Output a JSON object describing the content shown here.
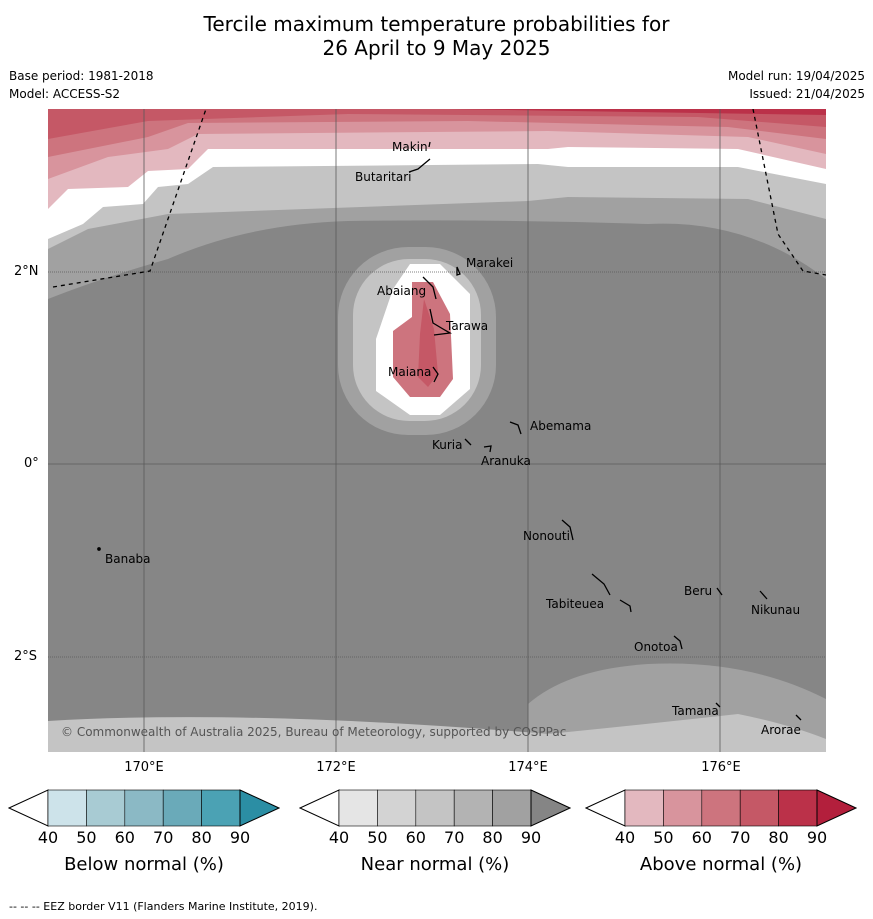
{
  "title": {
    "line1": "Tercile maximum temperature probabilities for",
    "line2": "26 April to 9 May 2025"
  },
  "meta": {
    "base_period": "Base period: 1981-2018",
    "model": "Model: ACCESS-S2",
    "model_run": "Model run: 19/04/2025",
    "issued": "Issued: 21/04/2025"
  },
  "map": {
    "lat_labels": [
      "2°N",
      "0°",
      "2°S"
    ],
    "lon_labels": [
      "170°E",
      "172°E",
      "174°E",
      "176°E"
    ],
    "places": {
      "makin": "Makin",
      "butaritari": "Butaritari",
      "marakei": "Marakei",
      "abaiang": "Abaiang",
      "tarawa": "Tarawa",
      "maiana": "Maiana",
      "abemama": "Abemama",
      "kuria": "Kuria",
      "aranuka": "Aranuka",
      "nonouti": "Nonouti",
      "banaba": "Banaba",
      "tabiteuea": "Tabiteuea",
      "beru": "Beru",
      "nikunau": "Nikunau",
      "onotoa": "Onotoa",
      "tamana": "Tamana",
      "arorae": "Arorae"
    },
    "copyright": "© Commonwealth of Australia 2025, Bureau of Meteorology, supported by COSPPac"
  },
  "colorbars": [
    {
      "label": "Below normal (%)",
      "ticks": [
        "40",
        "50",
        "60",
        "70",
        "80",
        "90"
      ],
      "colors": [
        "#ffffff",
        "#cde3ea",
        "#a8cbd3",
        "#8bb9c5",
        "#6aaab9",
        "#4ba2b4",
        "#2b8ea4"
      ]
    },
    {
      "label": "Near normal (%)",
      "ticks": [
        "40",
        "50",
        "60",
        "70",
        "80",
        "90"
      ],
      "colors": [
        "#ffffff",
        "#e5e5e5",
        "#d3d3d3",
        "#c4c4c4",
        "#b3b3b3",
        "#a1a1a1",
        "#858585"
      ]
    },
    {
      "label": "Above normal (%)",
      "ticks": [
        "40",
        "50",
        "60",
        "70",
        "80",
        "90"
      ],
      "colors": [
        "#ffffff",
        "#e3b8bf",
        "#d8949d",
        "#cd747e",
        "#c55866",
        "#bb3149",
        "#b31f3c"
      ]
    }
  ],
  "footnote": "--  --  -- EEZ border V11 (Flanders Marine Institute, 2019)."
}
